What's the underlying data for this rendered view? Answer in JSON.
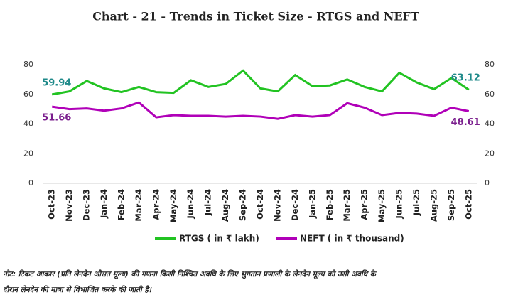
{
  "chart_data": {
    "type": "line",
    "title": "Chart - 21 - Trends in Ticket Size - RTGS and NEFT",
    "categories": [
      "Oct-23",
      "Nov-23",
      "Dec-23",
      "Jan-24",
      "Feb-24",
      "Mar-24",
      "Apr-24",
      "May-24",
      "Jun-24",
      "Jul-24",
      "Aug-24",
      "Sep-24",
      "Oct-24",
      "Nov-24",
      "Dec-24",
      "Jan-25",
      "Feb-25",
      "Mar-25",
      "Apr-25",
      "May-25",
      "Jun-25",
      "Jul-25",
      "Aug-25",
      "Sep-25",
      "Oct-25"
    ],
    "series": [
      {
        "name": "RTGS ( in ₹ lakh)",
        "color": "#22c322",
        "label_color": "#1f8a8a",
        "values": [
          59.94,
          62,
          69,
          64,
          61.5,
          65,
          61.5,
          61,
          69.5,
          65,
          67,
          76,
          64,
          62,
          73,
          65.5,
          66,
          70,
          65,
          62,
          74.5,
          68,
          63.5,
          71,
          63.12
        ]
      },
      {
        "name": "NEFT ( in ₹ thousand)",
        "color": "#b000b8",
        "label_color": "#7b1f8e",
        "axis": "y2",
        "values": [
          51.66,
          50,
          50.5,
          49,
          50.5,
          54.5,
          44.5,
          46,
          45.5,
          45.5,
          45,
          45.5,
          45,
          43.5,
          46,
          45,
          46,
          54,
          51,
          46,
          47.5,
          47,
          45.5,
          51,
          48.61
        ]
      }
    ],
    "ylim": [
      0,
      80
    ],
    "yticks": [
      0,
      20,
      40,
      60,
      80
    ],
    "y2lim": [
      0,
      80
    ],
    "y2ticks": [
      0,
      20,
      40,
      60,
      80
    ],
    "grid": false,
    "legend": "bottom",
    "note": [
      "नोट: टिकट आकार (प्रति लेनदेन औसत मूल्य) की गणना किसी निश्चित अवधि के लिए भुगतान प्रणाली के लेनदेन मूल्य को उसी अवधि के",
      "दौरान लेनदेन की मात्रा से विभाजित करके की जाती है।"
    ]
  }
}
